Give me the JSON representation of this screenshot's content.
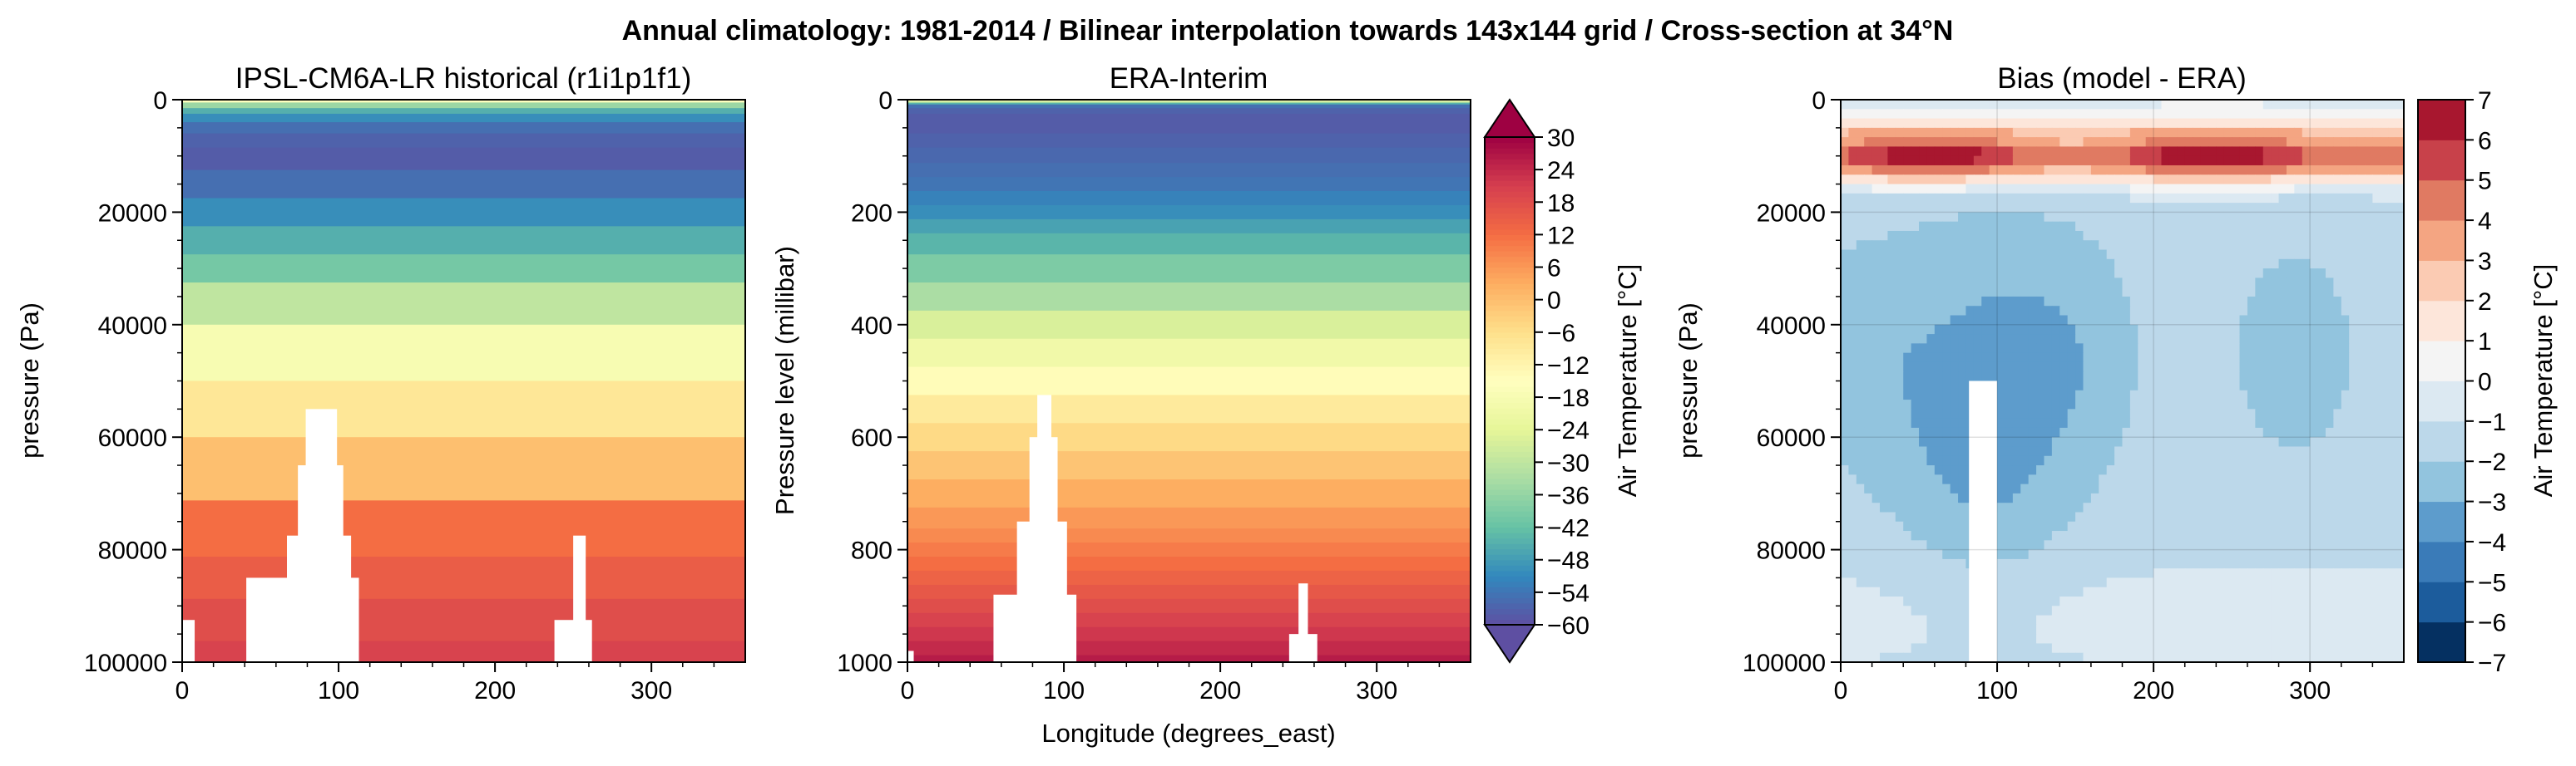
{
  "figure": {
    "suptitle": "Annual climatology: 1981-2014 / Bilinear interpolation towards 143x144 grid / Cross-section at 34°N"
  },
  "chart_data": [
    {
      "type": "heatmap",
      "title": "IPSL-CM6A-LR historical (r1i1p1f1)",
      "xlabel": "",
      "ylabel": "pressure (Pa)",
      "xlim": [
        0,
        360
      ],
      "ylim": [
        100000,
        0
      ],
      "x_ticks": [
        "0",
        "100",
        "200",
        "300"
      ],
      "y_ticks": [
        "0",
        "20000",
        "40000",
        "60000",
        "80000",
        "100000"
      ],
      "levels": [
        0,
        1000,
        2000,
        3000,
        5000,
        7000,
        10000,
        15000,
        20000,
        25000,
        30000,
        35000,
        45000,
        55000,
        65000,
        77500,
        85000,
        92500,
        100000
      ],
      "level_temps": [
        -15,
        -35,
        -45,
        -50,
        -55,
        -57,
        -58,
        -55,
        -50,
        -45,
        -40,
        -30,
        -18,
        -8,
        0,
        12,
        15,
        18,
        20
      ],
      "terrain": [
        {
          "lon_start": 79,
          "lon_end": 99,
          "top": 55000
        },
        {
          "lon_start": 74,
          "lon_end": 103,
          "top": 65000
        },
        {
          "lon_start": 67,
          "lon_end": 108,
          "top": 77500
        },
        {
          "lon_start": 50,
          "lon_end": 112,
          "top": 92500
        },
        {
          "lon_start": 41,
          "lon_end": 113,
          "top": 85000
        },
        {
          "lon_start": 0,
          "lon_end": 8,
          "top": 92500
        },
        {
          "lon_start": 238,
          "lon_end": 262,
          "top": 92500
        },
        {
          "lon_start": 250,
          "lon_end": 258,
          "top": 77500
        }
      ]
    },
    {
      "type": "heatmap",
      "title": "ERA-Interim",
      "xlabel": "Longitude (degrees_east)",
      "ylabel": "Pressure level (millibar)",
      "xlim": [
        0,
        360
      ],
      "ylim": [
        1000,
        0
      ],
      "x_ticks": [
        "0",
        "100",
        "200",
        "300"
      ],
      "y_ticks": [
        "0",
        "200",
        "400",
        "600",
        "800",
        "1000"
      ],
      "levels": [
        1,
        2,
        3,
        5,
        7,
        10,
        20,
        30,
        50,
        70,
        100,
        125,
        150,
        175,
        200,
        225,
        250,
        300,
        350,
        400,
        450,
        500,
        550,
        600,
        650,
        700,
        750,
        775,
        800,
        825,
        850,
        875,
        900,
        925,
        950,
        975,
        1000
      ],
      "level_temps": [
        -5,
        -15,
        -25,
        -35,
        -45,
        -55,
        -57,
        -58,
        -58,
        -57,
        -56,
        -55,
        -54,
        -52,
        -50,
        -47,
        -44,
        -39,
        -33,
        -26,
        -20,
        -14,
        -9,
        -5,
        -1,
        3,
        6,
        8,
        10,
        12,
        14,
        16,
        18,
        20,
        22,
        24,
        26
      ],
      "terrain": [
        {
          "lon_start": 83,
          "lon_end": 92,
          "top": 525
        },
        {
          "lon_start": 78,
          "lon_end": 96,
          "top": 600
        },
        {
          "lon_start": 70,
          "lon_end": 102,
          "top": 750
        },
        {
          "lon_start": 55,
          "lon_end": 108,
          "top": 880
        },
        {
          "lon_start": 0,
          "lon_end": 4,
          "top": 980
        },
        {
          "lon_start": 250,
          "lon_end": 256,
          "top": 860
        },
        {
          "lon_start": 244,
          "lon_end": 262,
          "top": 950
        }
      ],
      "colorbar": {
        "label": "Air Temperature [°C]",
        "ticks": [
          "30",
          "24",
          "18",
          "12",
          "6",
          "0",
          "−6",
          "−12",
          "−18",
          "−24",
          "−30",
          "−36",
          "−42",
          "−48",
          "−54",
          "−60"
        ],
        "range": [
          -60,
          30
        ],
        "extend": "both"
      }
    },
    {
      "type": "heatmap",
      "title": "Bias (model - ERA)",
      "xlabel": "",
      "ylabel": "pressure (Pa)",
      "xlim": [
        0,
        360
      ],
      "ylim": [
        100000,
        0
      ],
      "x_ticks": [
        "0",
        "100",
        "200",
        "300"
      ],
      "y_ticks": [
        "0",
        "20000",
        "40000",
        "60000",
        "80000",
        "100000"
      ],
      "terrain": [
        {
          "lon_start": 82,
          "lon_end": 100,
          "top": 50000
        }
      ],
      "colorbar": {
        "label": "Air Temperature [°C]",
        "ticks": [
          "7",
          "6",
          "5",
          "4",
          "3",
          "2",
          "1",
          "0",
          "−1",
          "−2",
          "−3",
          "−4",
          "−5",
          "−6",
          "−7"
        ],
        "range": [
          -7,
          7
        ]
      }
    }
  ],
  "colors": {
    "spectral_r": [
      "#5e4fa2",
      "#3288bd",
      "#66c2a5",
      "#abdda4",
      "#e6f598",
      "#ffffbf",
      "#fee08b",
      "#fdae61",
      "#f46d43",
      "#d53e4f",
      "#9e0142"
    ],
    "rdbu_r": [
      "#053061",
      "#1c5c9c",
      "#3a7bb8",
      "#5d9ccc",
      "#92c4de",
      "#bcd8ea",
      "#dce9f2",
      "#f4f4f4",
      "#fde6da",
      "#fbcbb3",
      "#f4a582",
      "#e07a62",
      "#c8414a",
      "#a8172f",
      "#67001f"
    ]
  }
}
